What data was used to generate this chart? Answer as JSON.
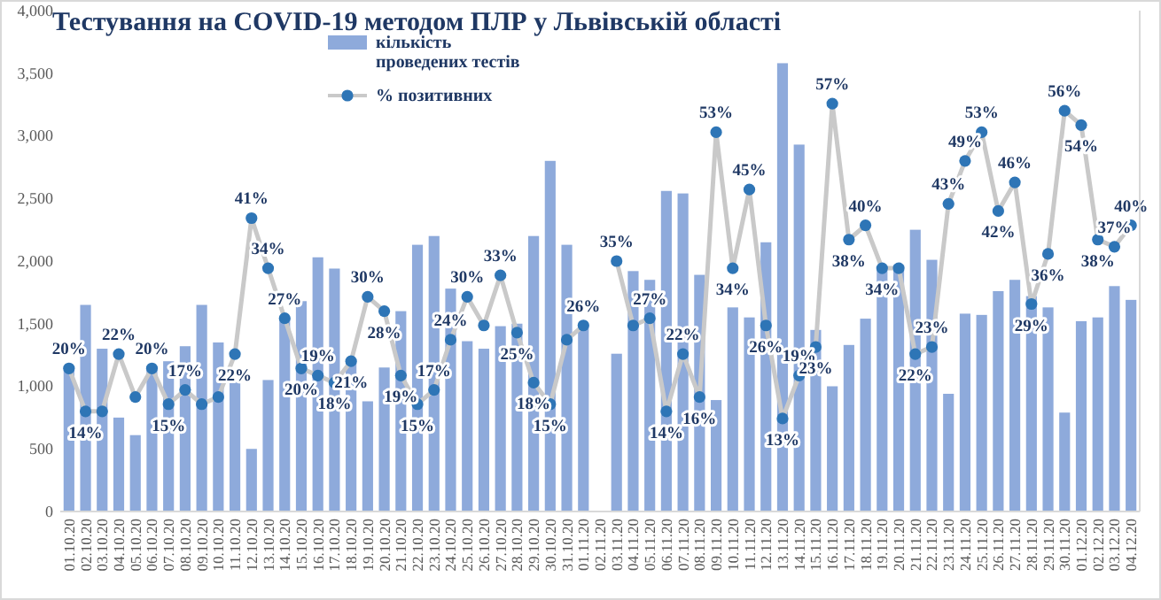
{
  "chart_data": {
    "type": "bar",
    "title": "Тестування на COVID-19 методом ПЛР у Львівській області",
    "categories": [
      "01.10.20",
      "02.10.20",
      "03.10.20",
      "04.10.20",
      "05.10.20",
      "06.10.20",
      "07.10.20",
      "08.10.20",
      "09.10.20",
      "10.10.20",
      "11.10.20",
      "12.10.20",
      "13.10.20",
      "14.10.20",
      "15.10.20",
      "16.10.20",
      "17.10.20",
      "18.10.20",
      "19.10.20",
      "20.10.20",
      "21.10.20",
      "22.10.20",
      "23.10.20",
      "24.10.20",
      "25.10.20",
      "26.10.20",
      "27.10.20",
      "28.10.20",
      "29.10.20",
      "30.10.20",
      "31.10.20",
      "01.11.20",
      "02.11.20",
      "03.11.20",
      "04.11.20",
      "05.11.20",
      "06.11.20",
      "07.11.20",
      "08.11.20",
      "09.11.20",
      "10.11.20",
      "11.11.20",
      "12.11.20",
      "13.11.20",
      "14.11.20",
      "15.11.20",
      "16.11.20",
      "17.11.20",
      "18.11.20",
      "19.11.20",
      "20.11.20",
      "21.11.20",
      "22.11.20",
      "23.11.20",
      "24.11.20",
      "25.11.20",
      "26.11.20",
      "27.11.20",
      "28.11.20",
      "29.11.20",
      "30.11.20",
      "01.12.20",
      "02.12.20",
      "03.12.20",
      "04.12.20"
    ],
    "series": [
      {
        "name": "кількість проведених тестів",
        "color": "#8eaadb",
        "values": [
          1150,
          1650,
          1300,
          750,
          610,
          1150,
          1200,
          1320,
          1650,
          1350,
          1050,
          500,
          1050,
          1550,
          1680,
          2030,
          1940,
          1200,
          880,
          1150,
          1600,
          2130,
          2200,
          1780,
          1360,
          1300,
          1480,
          1500,
          2200,
          2800,
          2130,
          1500,
          null,
          1260,
          1920,
          1850,
          2560,
          2540,
          1890,
          890,
          1630,
          1550,
          2150,
          3580,
          2930,
          1450,
          1000,
          1330,
          1540,
          1920,
          1970,
          2250,
          2010,
          940,
          1580,
          1570,
          1760,
          1850,
          1720,
          1630,
          790,
          1520,
          1550,
          1800,
          1690
        ]
      },
      {
        "type": "line",
        "name": "% позитивних",
        "color": "#2e75b6",
        "axis": "y2",
        "marker": "circle",
        "values": [
          20,
          14,
          14,
          22,
          16,
          20,
          15,
          17,
          15,
          16,
          22,
          41,
          34,
          27,
          20,
          19,
          18,
          21,
          30,
          28,
          19,
          15,
          17,
          24,
          30,
          26,
          33,
          25,
          18,
          15,
          24,
          26,
          null,
          35,
          26,
          27,
          14,
          22,
          16,
          53,
          34,
          45,
          26,
          13,
          19,
          23,
          57,
          38,
          40,
          34,
          34,
          22,
          23,
          43,
          49,
          53,
          42,
          46,
          29,
          36,
          56,
          54,
          38,
          37,
          40
        ],
        "value_labels": [
          "20%",
          "14%",
          null,
          "22%",
          null,
          "20%",
          "15%",
          "17%",
          null,
          null,
          "22%",
          "41%",
          "34%",
          "27%",
          "20%",
          "19%",
          "18%",
          "21%",
          "30%",
          "28%",
          "19%",
          "15%",
          "17%",
          "24%",
          "30%",
          null,
          "33%",
          "25%",
          "18%",
          "15%",
          null,
          "26%",
          null,
          "35%",
          null,
          "27%",
          "14%",
          "22%",
          "16%",
          "53%",
          "34%",
          "45%",
          "26%",
          "13%",
          "19%",
          "23%",
          "57%",
          "38%",
          "40%",
          "34%",
          null,
          "22%",
          "23%",
          "43%",
          "49%",
          "53%",
          "42%",
          "46%",
          "29%",
          "36%",
          "56%",
          "54%",
          "38%",
          "37%",
          "40%"
        ]
      }
    ],
    "ylim": [
      0,
      4000
    ],
    "yticks": [
      0,
      500,
      {
        "value": 1000,
        "label": "1,000"
      },
      {
        "value": 1500,
        "label": "1,500"
      },
      {
        "value": 2000,
        "label": "2,000"
      },
      {
        "value": 2500,
        "label": "2,500"
      },
      {
        "value": 3000,
        "label": "3,000"
      },
      {
        "value": 3500,
        "label": "3,500"
      },
      {
        "value": 4000,
        "label": "4,000"
      }
    ],
    "y2lim": [
      0,
      70
    ],
    "legend": "top",
    "grid": false
  }
}
